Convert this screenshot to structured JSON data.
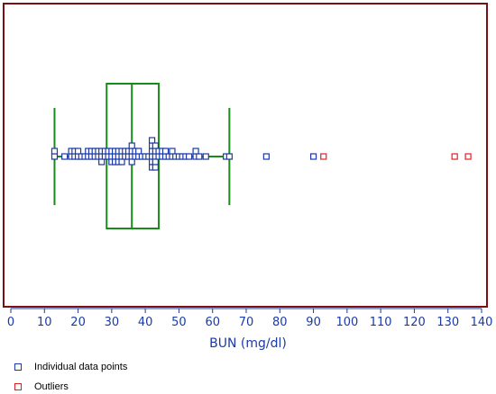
{
  "chart_data": {
    "type": "box",
    "xlabel": "BUN (mg/dl)",
    "xlim": [
      0,
      140
    ],
    "xticks": [
      0,
      10,
      20,
      30,
      40,
      50,
      60,
      70,
      80,
      90,
      100,
      110,
      120,
      130,
      140
    ],
    "box": {
      "whisker_low": 13,
      "q1": 28.5,
      "median": 36,
      "q3": 44,
      "whisker_high": 65
    },
    "points": [
      13,
      13,
      16,
      18,
      18,
      19,
      19,
      20,
      20,
      21,
      22,
      23,
      23,
      24,
      24,
      25,
      25,
      26,
      26,
      27,
      27,
      27,
      28,
      28,
      29,
      29,
      30,
      30,
      30,
      31,
      31,
      31,
      32,
      32,
      32,
      33,
      33,
      33,
      34,
      34,
      35,
      35,
      36,
      36,
      36,
      36,
      37,
      37,
      38,
      38,
      39,
      40,
      41,
      42,
      42,
      42,
      42,
      42,
      42,
      43,
      43,
      43,
      43,
      43,
      44,
      44,
      45,
      45,
      46,
      46,
      47,
      48,
      48,
      49,
      50,
      51,
      52,
      53,
      55,
      55,
      56,
      58,
      64,
      65,
      76,
      90
    ],
    "outliers": [
      93,
      132,
      136
    ],
    "legend": [
      {
        "label": "Individual data points",
        "color": "#1a3aa8"
      },
      {
        "label": "Outliers",
        "color": "#e02020"
      }
    ],
    "colors": {
      "box": "#1a8a1a",
      "points": "#1a3aa8",
      "outliers": "#e02020",
      "frame": "#7a1010",
      "axis": "#1a3aa8"
    }
  }
}
